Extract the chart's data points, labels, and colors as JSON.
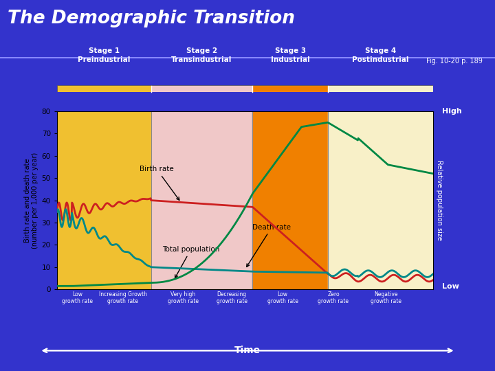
{
  "title": "The Demographic Transition",
  "fig_ref": "Fig. 10-20 p. 189",
  "bg_color": "#3333cc",
  "plot_bg": "#ffffff",
  "ylabel_left": "Birth rate and death rate\n(number per 1,000 per year)",
  "ylabel_right": "Relative population size",
  "xlabel": "Time",
  "ylim": [
    0,
    80
  ],
  "yticks": [
    0,
    10,
    20,
    30,
    40,
    50,
    60,
    70,
    80
  ],
  "high_label": "High",
  "low_label": "Low",
  "stage_colors": [
    "#f0c030",
    "#f0c8c8",
    "#f08000",
    "#f8f0c8"
  ],
  "stage_boundaries": [
    0.0,
    0.25,
    0.52,
    0.72,
    1.0
  ],
  "growth_labels": [
    "Low\ngrowth rate",
    "Increasing Growth\ngrowth rate",
    "Very high\ngrowth rate",
    "Decreasing\ngrowth rate",
    "Low\ngrowth rate",
    "Zero\ngrowth rate",
    "Negative\ngrowth rate"
  ],
  "birth_color": "#cc2020",
  "death_color": "#008888",
  "population_color": "#008844",
  "annotation_color": "#000000"
}
